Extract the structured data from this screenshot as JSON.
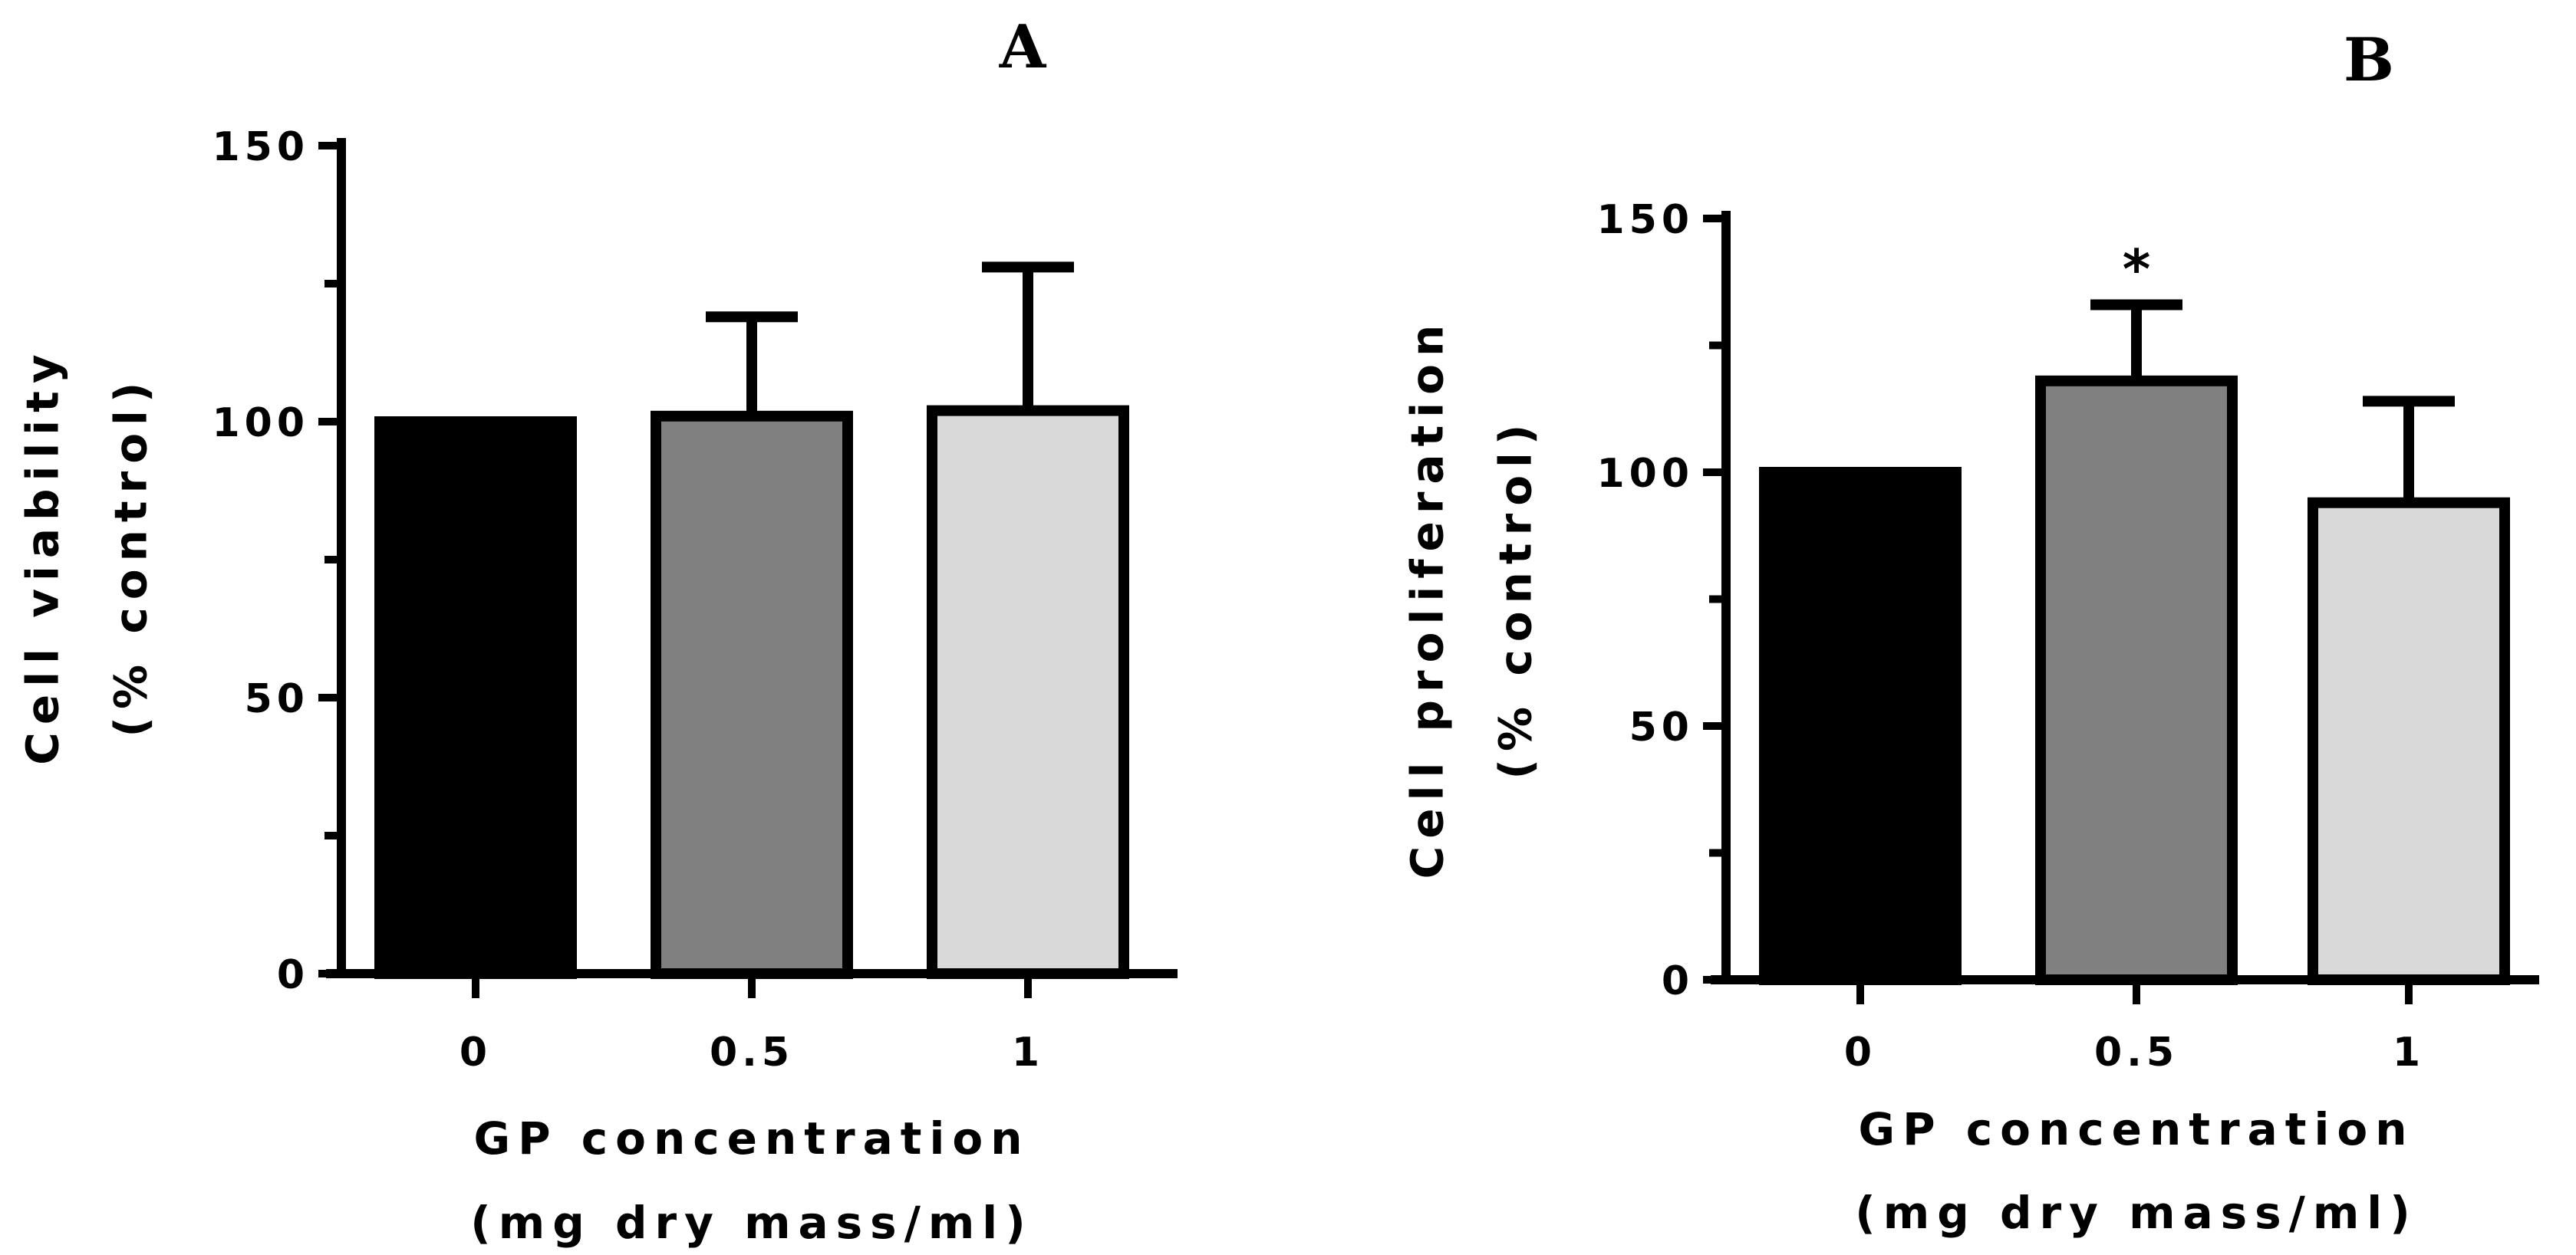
{
  "chart_data": [
    {
      "panel": "A",
      "type": "bar",
      "categories": [
        "0",
        "0.5",
        "1"
      ],
      "values": [
        100,
        101,
        102
      ],
      "error_upper": [
        100,
        119,
        128
      ],
      "colors": [
        "#000000",
        "#808080",
        "#d9d9d9"
      ],
      "annotations": [
        "",
        "",
        ""
      ],
      "ylabel_line1": "Cell viability",
      "ylabel_line2": "(% control)",
      "xlabel_line1": "GP concentration",
      "xlabel_line2": "(mg dry mass/ml)",
      "ylim": [
        0,
        150
      ],
      "yticks": [
        0,
        50,
        100,
        150
      ],
      "yminor": [
        25,
        75,
        125
      ]
    },
    {
      "panel": "B",
      "type": "bar",
      "categories": [
        "0",
        "0.5",
        "1"
      ],
      "values": [
        100,
        118,
        94
      ],
      "error_upper": [
        100,
        133,
        114
      ],
      "colors": [
        "#000000",
        "#808080",
        "#d9d9d9"
      ],
      "annotations": [
        "",
        "*",
        ""
      ],
      "ylabel_line1": "Cell proliferation",
      "ylabel_line2": "(% control)",
      "xlabel_line1": "GP concentration",
      "xlabel_line2": "(mg dry mass/ml)",
      "ylim": [
        0,
        150
      ],
      "yticks": [
        0,
        50,
        100,
        150
      ],
      "yminor": [
        25,
        75,
        125
      ]
    }
  ]
}
